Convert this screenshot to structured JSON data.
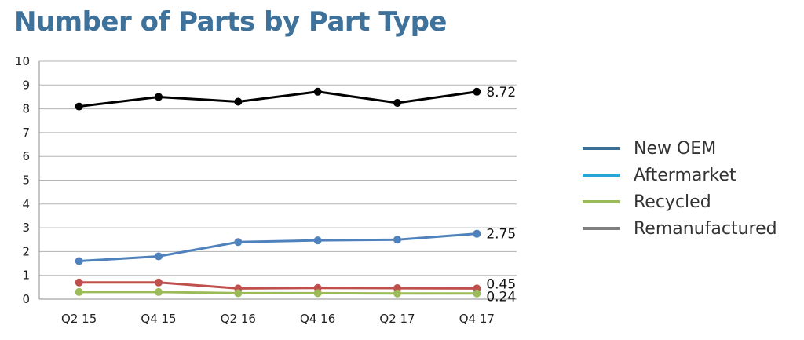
{
  "chart_data": {
    "type": "line",
    "title": "Number of Parts by Part Type",
    "categories": [
      "Q2 15",
      "Q4 15",
      "Q2 16",
      "Q4 16",
      "Q2 17",
      "Q4 17"
    ],
    "ylim": [
      0,
      10
    ],
    "yticks": [
      "0",
      "1",
      "2",
      "3",
      "4",
      "5",
      "6",
      "7",
      "8",
      "9",
      "10"
    ],
    "grid": true,
    "legend_position": "right",
    "series": [
      {
        "color": "#000000",
        "values": [
          8.1,
          8.5,
          8.3,
          8.72,
          8.25,
          8.72
        ],
        "end_label": "8.72"
      },
      {
        "color": "#4f81bd",
        "values": [
          1.6,
          1.8,
          2.4,
          2.47,
          2.5,
          2.75
        ],
        "end_label": "2.75"
      },
      {
        "color": "#c0504d",
        "values": [
          0.7,
          0.7,
          0.45,
          0.47,
          0.46,
          0.45
        ],
        "end_label": "0.45"
      },
      {
        "color": "#9bbb59",
        "values": [
          0.3,
          0.3,
          0.25,
          0.25,
          0.24,
          0.24
        ],
        "end_label": "0.24"
      }
    ],
    "legend": [
      {
        "label": "New OEM",
        "color": "#3a6f96"
      },
      {
        "label": "Aftermarket",
        "color": "#27a5d6"
      },
      {
        "label": "Recycled",
        "color": "#9bbb59"
      },
      {
        "label": "Remanufactured",
        "color": "#7f7f7f"
      }
    ]
  }
}
